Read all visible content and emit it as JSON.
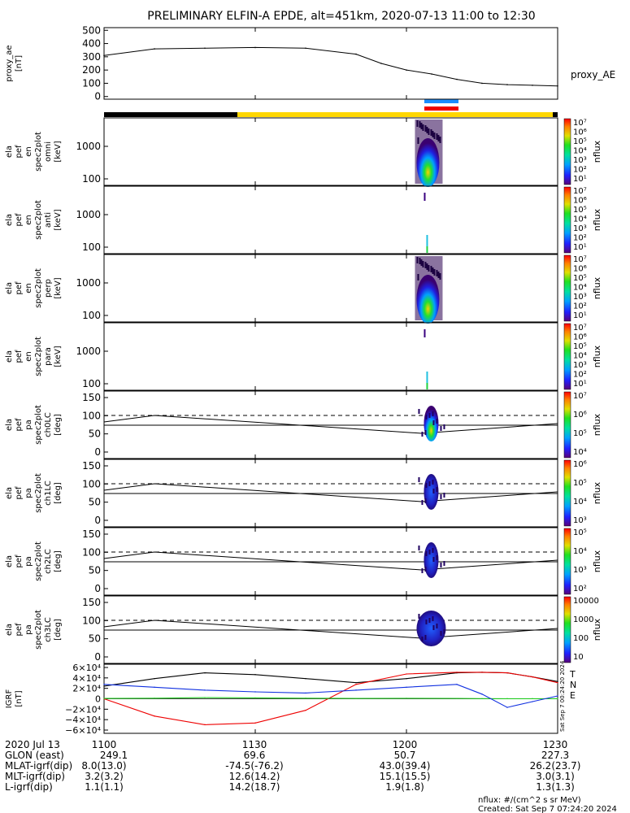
{
  "title": "PRELIMINARY ELFIN-A EPDE, alt=451km, 2020-07-13 11:00 to 12:30",
  "chart_data": [
    {
      "type": "line",
      "ylabel": [
        "proxy_ae",
        "[nT]"
      ],
      "legend": "proxy_AE",
      "yticks": [
        "500",
        "400",
        "300",
        "200",
        "100",
        "0"
      ],
      "ylim": [
        -20,
        520
      ],
      "x_minutes": [
        0,
        10,
        20,
        30,
        40,
        50,
        55,
        60,
        65,
        70,
        75,
        80,
        85,
        90
      ],
      "values": [
        310,
        360,
        365,
        370,
        365,
        320,
        250,
        200,
        170,
        130,
        100,
        90,
        85,
        80
      ]
    },
    {
      "type": "heatmap",
      "ylabel": [
        "ela",
        "pef",
        "en",
        "spec2plot",
        "omni",
        "[keV]"
      ],
      "yticks": [
        "1000",
        "100"
      ],
      "cbar_label": "nflux",
      "cbar_ticks": [
        "10⁷",
        "10⁶",
        "10⁵",
        "10⁴",
        "10³",
        "10²",
        "10¹"
      ]
    },
    {
      "type": "heatmap",
      "ylabel": [
        "ela",
        "pef",
        "en",
        "spec2plot",
        "anti",
        "[keV]"
      ],
      "yticks": [
        "1000",
        "100"
      ],
      "cbar_label": "nflux",
      "cbar_ticks": [
        "10⁷",
        "10⁶",
        "10⁵",
        "10⁴",
        "10³",
        "10²",
        "10¹"
      ]
    },
    {
      "type": "heatmap",
      "ylabel": [
        "ela",
        "pef",
        "en",
        "spec2plot",
        "perp",
        "[keV]"
      ],
      "yticks": [
        "1000",
        "100"
      ],
      "cbar_label": "nflux",
      "cbar_ticks": [
        "10⁷",
        "10⁶",
        "10⁵",
        "10⁴",
        "10³",
        "10²",
        "10¹"
      ]
    },
    {
      "type": "heatmap",
      "ylabel": [
        "ela",
        "pef",
        "en",
        "spec2plot",
        "para",
        "[keV]"
      ],
      "yticks": [
        "1000",
        "100"
      ],
      "cbar_label": "nflux",
      "cbar_ticks": [
        "10⁷",
        "10⁶",
        "10⁵",
        "10⁴",
        "10³",
        "10²",
        "10¹"
      ]
    },
    {
      "type": "heatmap",
      "ylabel": [
        "ela",
        "pef",
        "pa",
        "spec2plot",
        "ch0LC",
        "[deg]"
      ],
      "yticks": [
        "150",
        "100",
        "50",
        "0"
      ],
      "cbar_label": "nflux",
      "cbar_ticks": [
        "10⁷",
        "10⁶",
        "10⁵",
        "10⁴"
      ]
    },
    {
      "type": "heatmap",
      "ylabel": [
        "ela",
        "pef",
        "pa",
        "spec2plot",
        "ch1LC",
        "[deg]"
      ],
      "yticks": [
        "150",
        "100",
        "50",
        "0"
      ],
      "cbar_label": "nflux",
      "cbar_ticks": [
        "10⁶",
        "10⁵",
        "10⁴",
        "10³"
      ]
    },
    {
      "type": "heatmap",
      "ylabel": [
        "ela",
        "pef",
        "pa",
        "spec2plot",
        "ch2LC",
        "[deg]"
      ],
      "yticks": [
        "150",
        "100",
        "50",
        "0"
      ],
      "cbar_label": "nflux",
      "cbar_ticks": [
        "10⁵",
        "10⁴",
        "10³",
        "10²"
      ]
    },
    {
      "type": "heatmap",
      "ylabel": [
        "ela",
        "pef",
        "pa",
        "spec2plot",
        "ch3LC",
        "[deg]"
      ],
      "yticks": [
        "150",
        "100",
        "50",
        "0"
      ],
      "cbar_label": "nflux",
      "cbar_ticks": [
        "10000",
        "1000",
        "100",
        "10"
      ]
    },
    {
      "type": "line",
      "ylabel": [
        "IGRF",
        "[nT]"
      ],
      "yticks": [
        "6×10⁴",
        "4×10⁴",
        "2×10⁴",
        "0",
        "−2×10⁴",
        "−4×10⁴",
        "−6×10⁴"
      ],
      "ylim": [
        -60000,
        60000
      ],
      "x_minutes": [
        0,
        10,
        20,
        30,
        40,
        50,
        60,
        70,
        75,
        80,
        85,
        90
      ],
      "series": [
        {
          "name": "T",
          "color": "#000000",
          "values": [
            22000,
            35000,
            45000,
            42000,
            35000,
            28000,
            35000,
            45000,
            46000,
            45000,
            38000,
            30000
          ]
        },
        {
          "name": "N",
          "color": "#ee0000",
          "values": [
            0,
            -30000,
            -45000,
            -42000,
            -20000,
            25000,
            43000,
            46000,
            46000,
            45000,
            38000,
            28000
          ]
        },
        {
          "name": "E",
          "color": "#22cc22",
          "values": [
            500,
            1000,
            2000,
            1500,
            1000,
            500,
            800,
            500,
            300,
            200,
            200,
            100
          ]
        },
        {
          "name": "",
          "color": "#1030e0",
          "values": [
            25000,
            20000,
            15000,
            12000,
            10000,
            15000,
            20000,
            25000,
            8000,
            -15000,
            -5000,
            5000
          ]
        }
      ]
    }
  ],
  "x_axis": {
    "date": "2020 Jul 13",
    "ticks": [
      "1100",
      "1130",
      "1200",
      "1230"
    ],
    "rows": [
      {
        "label": "GLON (east)",
        "values": [
          "249.1",
          "69.6",
          "50.7",
          "227.3"
        ]
      },
      {
        "label": "MLAT-igrf(dip)",
        "values": [
          "8.0(13.0)",
          "-74.5(-76.2)",
          "43.0(39.4)",
          "26.2(23.7)"
        ]
      },
      {
        "label": "MLT-igrf(dip)",
        "values": [
          "3.2(3.2)",
          "12.6(14.2)",
          "15.1(15.5)",
          "3.0(3.1)"
        ]
      },
      {
        "label": "L-igrf(dip)",
        "values": [
          "1.1(1.1)",
          "14.2(18.7)",
          "1.9(1.8)",
          "1.3(1.3)"
        ]
      }
    ]
  },
  "side_label": "Sat Sep 7 00:24:20 2024",
  "footer": {
    "units": "nflux: #/(cm^2 s sr MeV)",
    "created": "Created: Sat Sep  7 07:24:20 2024"
  }
}
